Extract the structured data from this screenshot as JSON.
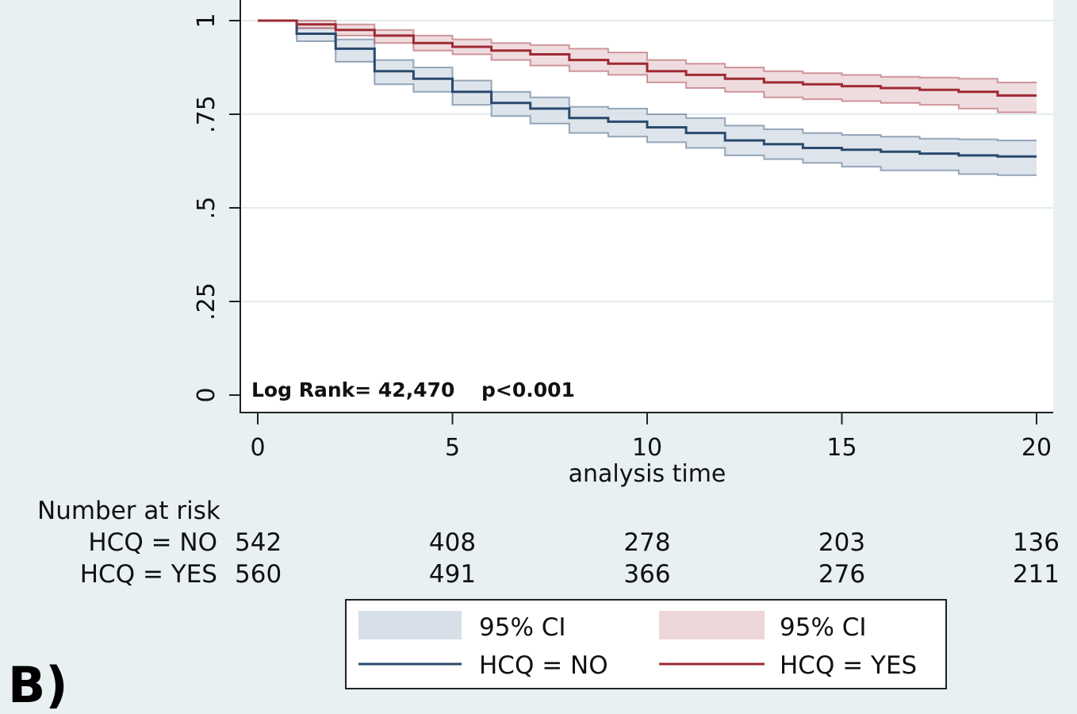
{
  "panel_label": "B)",
  "chart_data": {
    "type": "line",
    "subtype": "kaplan-meier-step",
    "xlabel": "analysis time",
    "ylabel": "",
    "xlim": [
      0,
      20
    ],
    "ylim": [
      0,
      1
    ],
    "x_ticks": [
      0,
      5,
      10,
      15,
      20
    ],
    "x_tick_labels": [
      "0",
      "5",
      "10",
      "15",
      "20"
    ],
    "y_ticks": [
      0,
      0.25,
      0.5,
      0.75,
      1
    ],
    "y_tick_labels": [
      "0",
      ".25",
      ".5",
      ".75",
      "1"
    ],
    "grid": true,
    "annotation": {
      "log_rank": "Log Rank=  42,470",
      "p_value": "p<0.001"
    },
    "series": [
      {
        "name": "HCQ = NO",
        "color": "#2a4a6e",
        "ci_color": "#d7dfe8",
        "x": [
          0,
          1,
          2,
          3,
          4,
          5,
          6,
          7,
          8,
          9,
          10,
          11,
          12,
          13,
          14,
          15,
          16,
          17,
          18,
          19,
          20
        ],
        "y": [
          1.0,
          0.965,
          0.925,
          0.865,
          0.845,
          0.81,
          0.78,
          0.765,
          0.74,
          0.73,
          0.715,
          0.7,
          0.68,
          0.67,
          0.66,
          0.655,
          0.65,
          0.645,
          0.64,
          0.637,
          0.637
        ],
        "lower": [
          1.0,
          0.945,
          0.89,
          0.83,
          0.81,
          0.775,
          0.745,
          0.725,
          0.7,
          0.69,
          0.675,
          0.66,
          0.64,
          0.63,
          0.62,
          0.61,
          0.6,
          0.6,
          0.59,
          0.587,
          0.587
        ],
        "upper": [
          1.0,
          0.98,
          0.95,
          0.895,
          0.875,
          0.84,
          0.81,
          0.795,
          0.77,
          0.765,
          0.75,
          0.74,
          0.72,
          0.71,
          0.7,
          0.695,
          0.69,
          0.685,
          0.683,
          0.68,
          0.68
        ]
      },
      {
        "name": "HCQ = YES",
        "color": "#9e2a33",
        "ci_color": "#ecd6d9",
        "x": [
          0,
          1,
          2,
          3,
          4,
          5,
          6,
          7,
          8,
          9,
          10,
          11,
          12,
          13,
          14,
          15,
          16,
          17,
          18,
          19,
          20
        ],
        "y": [
          1.0,
          0.99,
          0.975,
          0.96,
          0.94,
          0.93,
          0.92,
          0.91,
          0.895,
          0.885,
          0.865,
          0.855,
          0.845,
          0.835,
          0.83,
          0.825,
          0.82,
          0.815,
          0.81,
          0.8,
          0.8
        ],
        "lower": [
          1.0,
          0.98,
          0.96,
          0.94,
          0.92,
          0.91,
          0.895,
          0.88,
          0.865,
          0.855,
          0.835,
          0.82,
          0.81,
          0.795,
          0.79,
          0.785,
          0.78,
          0.775,
          0.765,
          0.755,
          0.755
        ],
        "upper": [
          1.0,
          1.0,
          0.99,
          0.975,
          0.96,
          0.95,
          0.94,
          0.935,
          0.925,
          0.915,
          0.895,
          0.885,
          0.875,
          0.865,
          0.86,
          0.855,
          0.85,
          0.848,
          0.845,
          0.835,
          0.835
        ]
      }
    ],
    "risk_table": {
      "title": "Number at risk",
      "times": [
        0,
        5,
        10,
        15,
        20
      ],
      "rows": [
        {
          "label": "HCQ = NO",
          "values": [
            "542",
            "408",
            "278",
            "203",
            "136"
          ]
        },
        {
          "label": "HCQ = YES",
          "values": [
            "560",
            "491",
            "366",
            "276",
            "211"
          ]
        }
      ]
    },
    "legend": {
      "position": "bottom",
      "entries": [
        {
          "label": "95% CI",
          "kind": "band",
          "series": 0
        },
        {
          "label": "95% CI",
          "kind": "band",
          "series": 1
        },
        {
          "label": "HCQ = NO",
          "kind": "line",
          "series": 0
        },
        {
          "label": "HCQ = YES",
          "kind": "line",
          "series": 1
        }
      ]
    }
  }
}
